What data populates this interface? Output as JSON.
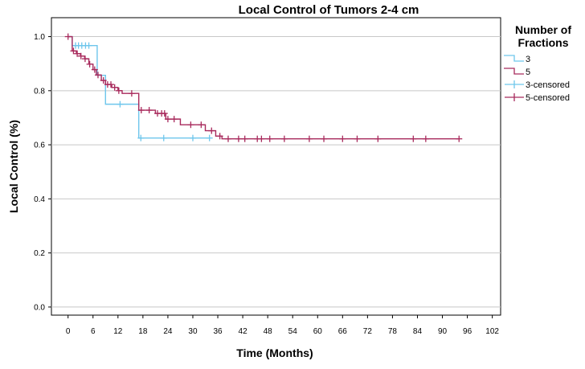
{
  "chart_data": {
    "type": "line",
    "title": "Local Control of Tumors 2-4 cm",
    "xlabel": "Time (Months)",
    "ylabel": "Local Control (%)",
    "xlim": [
      -4,
      104
    ],
    "ylim": [
      -0.03,
      1.07
    ],
    "x_ticks": [
      0,
      6,
      12,
      18,
      24,
      30,
      36,
      42,
      48,
      54,
      60,
      66,
      72,
      78,
      84,
      90,
      96,
      102
    ],
    "x_tick_labels": [
      "0",
      "6",
      "12",
      "18",
      "24",
      "30",
      "36",
      "42",
      "48",
      "54",
      "60",
      "66",
      "72",
      "78",
      "84",
      "90",
      "96",
      "102"
    ],
    "y_ticks": [
      0.0,
      0.2,
      0.4,
      0.6,
      0.8,
      1.0
    ],
    "y_tick_labels": [
      "0.0",
      "0.2",
      "0.4",
      "0.6",
      "0.8",
      "1.0"
    ],
    "grid": "horizontal",
    "legend": {
      "title": "Number of Fractions",
      "title_lines": [
        "Number of",
        "Fractions"
      ],
      "placement": "right",
      "entries": [
        "3",
        "5",
        "3-censored",
        "5-censored"
      ]
    },
    "series": [
      {
        "name": "3",
        "color": "#6ec6ec",
        "steps": [
          [
            0,
            1.0
          ],
          [
            1,
            0.967
          ],
          [
            7,
            0.857
          ],
          [
            9,
            0.75
          ],
          [
            17,
            0.625
          ],
          [
            34,
            0.625
          ]
        ],
        "censored": [
          1.8,
          2.5,
          3.3,
          4.2,
          5.0,
          12.5,
          17.5,
          23,
          30,
          34
        ]
      },
      {
        "name": "5",
        "color": "#a82a5c",
        "steps": [
          [
            0,
            1.0
          ],
          [
            1,
            0.947
          ],
          [
            2,
            0.937
          ],
          [
            3,
            0.928
          ],
          [
            4,
            0.918
          ],
          [
            5,
            0.898
          ],
          [
            6,
            0.878
          ],
          [
            6.8,
            0.858
          ],
          [
            8,
            0.838
          ],
          [
            9,
            0.823
          ],
          [
            10.5,
            0.812
          ],
          [
            12,
            0.8
          ],
          [
            13,
            0.79
          ],
          [
            17,
            0.728
          ],
          [
            21,
            0.716
          ],
          [
            23.5,
            0.695
          ],
          [
            27,
            0.674
          ],
          [
            33,
            0.652
          ],
          [
            35.5,
            0.632
          ],
          [
            37,
            0.622
          ],
          [
            94,
            0.622
          ]
        ],
        "censored": [
          0,
          1.3,
          2.2,
          3.1,
          4.1,
          5.2,
          6.4,
          7.2,
          8.5,
          9.5,
          10.3,
          11.2,
          12.2,
          15.3,
          17.6,
          19.5,
          21.5,
          22.5,
          23.2,
          24,
          25.5,
          29.5,
          32,
          34.5,
          36.5,
          38.5,
          41,
          42.5,
          45.5,
          46.5,
          48.5,
          52,
          58,
          61.5,
          66,
          69.5,
          74.5,
          83,
          86,
          94
        ]
      }
    ]
  }
}
